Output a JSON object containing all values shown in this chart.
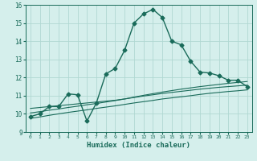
{
  "xlabel": "Humidex (Indice chaleur)",
  "xlim": [
    -0.5,
    23.5
  ],
  "ylim": [
    9,
    16
  ],
  "xticks": [
    0,
    1,
    2,
    3,
    4,
    5,
    6,
    7,
    8,
    9,
    10,
    11,
    12,
    13,
    14,
    15,
    16,
    17,
    18,
    19,
    20,
    21,
    22,
    23
  ],
  "yticks": [
    9,
    10,
    11,
    12,
    13,
    14,
    15,
    16
  ],
  "bg_color": "#d5efec",
  "grid_color": "#b0d8d2",
  "line_color": "#1a6b5a",
  "series": [
    {
      "x": [
        0,
        1,
        2,
        3,
        4,
        5,
        6,
        7,
        8,
        9,
        10,
        11,
        12,
        13,
        14,
        15,
        16,
        17,
        18,
        19,
        20,
        21,
        22,
        23
      ],
      "y": [
        9.85,
        10.0,
        10.4,
        10.4,
        11.1,
        11.05,
        9.6,
        10.6,
        12.2,
        12.5,
        13.5,
        15.0,
        15.5,
        15.75,
        15.3,
        14.0,
        13.8,
        12.9,
        12.3,
        12.25,
        12.1,
        11.85,
        11.85,
        11.5
      ],
      "marker": "D",
      "markersize": 2.5,
      "linewidth": 1.0
    },
    {
      "x": [
        0,
        1,
        2,
        3,
        4,
        5,
        6,
        7,
        8,
        9,
        10,
        11,
        12,
        13,
        14,
        15,
        16,
        17,
        18,
        19,
        20,
        21,
        22,
        23
      ],
      "y": [
        10.3,
        10.35,
        10.4,
        10.45,
        10.5,
        10.55,
        10.6,
        10.65,
        10.7,
        10.75,
        10.82,
        10.9,
        10.98,
        11.05,
        11.12,
        11.18,
        11.24,
        11.3,
        11.36,
        11.41,
        11.46,
        11.5,
        11.54,
        11.58
      ],
      "marker": null,
      "linewidth": 0.8
    },
    {
      "x": [
        0,
        1,
        2,
        3,
        4,
        5,
        6,
        7,
        8,
        9,
        10,
        11,
        12,
        13,
        14,
        15,
        16,
        17,
        18,
        19,
        20,
        21,
        22,
        23
      ],
      "y": [
        9.75,
        9.83,
        9.92,
        10.0,
        10.08,
        10.15,
        10.22,
        10.3,
        10.37,
        10.44,
        10.52,
        10.6,
        10.67,
        10.74,
        10.82,
        10.88,
        10.94,
        11.0,
        11.07,
        11.13,
        11.18,
        11.23,
        11.27,
        11.32
      ],
      "marker": null,
      "linewidth": 0.8
    },
    {
      "x": [
        0,
        1,
        2,
        3,
        4,
        5,
        6,
        7,
        8,
        9,
        10,
        11,
        12,
        13,
        14,
        15,
        16,
        17,
        18,
        19,
        20,
        21,
        22,
        23
      ],
      "y": [
        10.05,
        10.12,
        10.2,
        10.27,
        10.35,
        10.42,
        10.5,
        10.57,
        10.65,
        10.73,
        10.82,
        10.92,
        11.02,
        11.11,
        11.2,
        11.28,
        11.36,
        11.43,
        11.5,
        11.56,
        11.62,
        11.68,
        11.73,
        11.78
      ],
      "marker": null,
      "linewidth": 0.8
    }
  ]
}
